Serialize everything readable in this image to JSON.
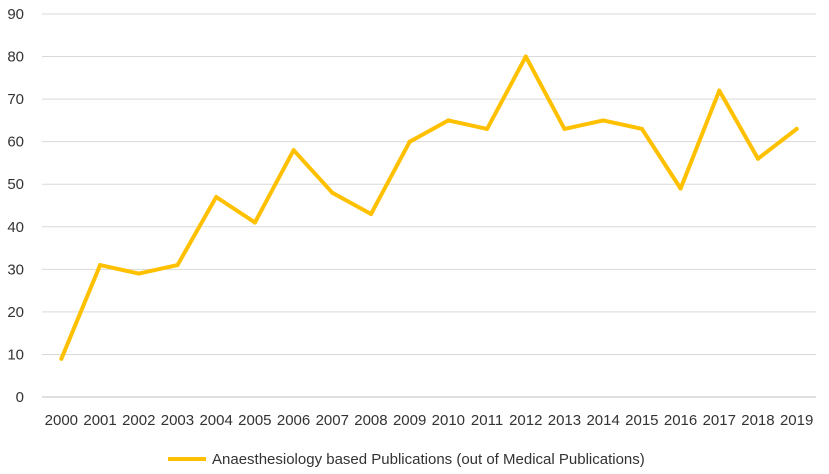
{
  "chart_data": {
    "type": "line",
    "title": "",
    "xlabel": "",
    "ylabel": "",
    "categories": [
      "2000",
      "2001",
      "2002",
      "2003",
      "2004",
      "2005",
      "2006",
      "2007",
      "2008",
      "2009",
      "2010",
      "2011",
      "2012",
      "2013",
      "2014",
      "2015",
      "2016",
      "2017",
      "2018",
      "2019"
    ],
    "series": [
      {
        "name": "Anaesthesiology based Publications (out of Medical Publications)",
        "color": "#FFC000",
        "values": [
          9,
          31,
          29,
          31,
          47,
          41,
          58,
          48,
          43,
          60,
          65,
          63,
          80,
          63,
          65,
          63,
          49,
          72,
          56,
          63
        ]
      }
    ],
    "ylim": [
      0,
      90
    ],
    "yticks": [
      "0",
      "10",
      "20",
      "30",
      "40",
      "50",
      "60",
      "70",
      "80",
      "90"
    ],
    "grid": "horizontal",
    "legend": "bottom"
  }
}
